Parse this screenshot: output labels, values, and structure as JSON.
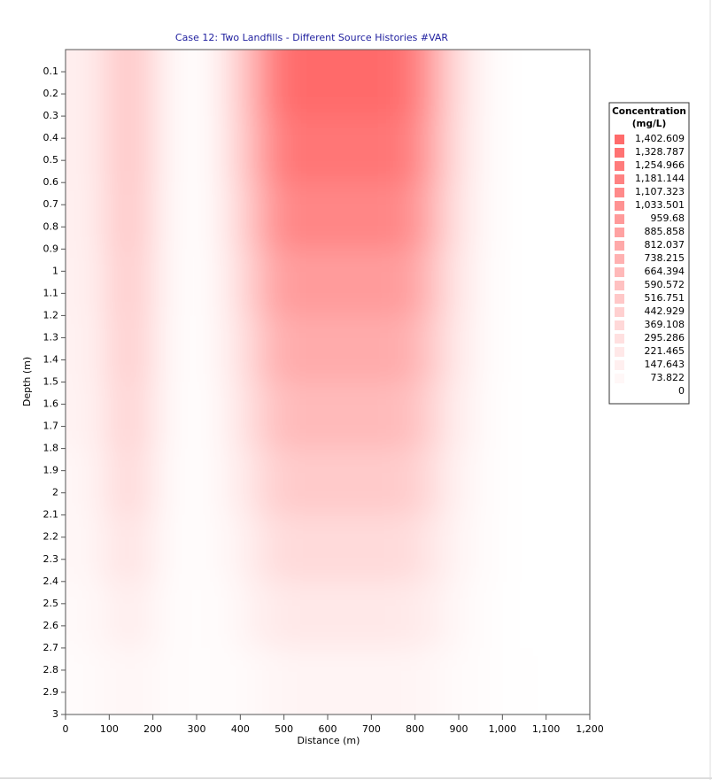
{
  "chart_data": {
    "type": "heatmap",
    "title": "Case 12: Two Landfills - Different Source Histories #VAR",
    "x_label": "Distance (m)",
    "y_label": "Depth (m)",
    "x": [
      25,
      75,
      125,
      175,
      225,
      275,
      325,
      375,
      425,
      475,
      525,
      575,
      625,
      675,
      725,
      775,
      825,
      875,
      925,
      975,
      1025,
      1075,
      1125,
      1175
    ],
    "y": [
      0.15,
      0.45,
      0.75,
      1.05,
      1.35,
      1.65,
      1.95,
      2.25,
      2.55,
      2.85
    ],
    "values": [
      [
        150,
        250,
        500,
        450,
        150,
        30,
        60,
        300,
        700,
        1200,
        1400,
        1400,
        1400,
        1400,
        1400,
        1350,
        1000,
        500,
        200,
        50,
        10,
        0,
        0,
        0
      ],
      [
        150,
        250,
        500,
        450,
        150,
        30,
        60,
        280,
        650,
        1100,
        1300,
        1300,
        1300,
        1300,
        1300,
        1250,
        930,
        470,
        190,
        50,
        10,
        0,
        0,
        0
      ],
      [
        140,
        240,
        480,
        430,
        140,
        30,
        55,
        250,
        580,
        980,
        1150,
        1150,
        1150,
        1150,
        1150,
        1100,
        820,
        420,
        170,
        45,
        10,
        0,
        0,
        0
      ],
      [
        130,
        220,
        450,
        400,
        130,
        25,
        50,
        210,
        480,
        820,
        950,
        950,
        950,
        950,
        950,
        920,
        690,
        350,
        150,
        40,
        10,
        0,
        0,
        0
      ],
      [
        120,
        200,
        420,
        380,
        120,
        25,
        45,
        180,
        400,
        690,
        800,
        800,
        800,
        800,
        800,
        770,
        580,
        300,
        130,
        35,
        10,
        0,
        0,
        0
      ],
      [
        110,
        180,
        380,
        340,
        110,
        25,
        40,
        150,
        330,
        560,
        650,
        650,
        650,
        650,
        650,
        630,
        470,
        240,
        110,
        30,
        10,
        0,
        0,
        0
      ],
      [
        90,
        150,
        320,
        290,
        95,
        25,
        40,
        120,
        260,
        430,
        500,
        500,
        500,
        500,
        500,
        480,
        370,
        190,
        90,
        30,
        10,
        0,
        0,
        0
      ],
      [
        80,
        120,
        250,
        220,
        80,
        25,
        35,
        90,
        180,
        300,
        350,
        350,
        350,
        350,
        350,
        340,
        260,
        140,
        70,
        25,
        10,
        0,
        0,
        0
      ],
      [
        60,
        90,
        150,
        140,
        60,
        25,
        30,
        60,
        120,
        190,
        220,
        220,
        220,
        220,
        220,
        210,
        170,
        100,
        50,
        20,
        10,
        0,
        0,
        0
      ],
      [
        40,
        60,
        80,
        80,
        50,
        30,
        30,
        40,
        60,
        90,
        100,
        100,
        100,
        100,
        100,
        100,
        90,
        60,
        40,
        20,
        10,
        5,
        0,
        0
      ]
    ],
    "xlim": [
      0,
      1200
    ],
    "xticks": [
      0,
      100,
      200,
      300,
      400,
      500,
      600,
      700,
      800,
      900,
      {
        "value": 1000,
        "label": "1,000"
      },
      {
        "value": 1100,
        "label": "1,100"
      },
      {
        "value": 1200,
        "label": "1,200"
      }
    ],
    "ylim": [
      0,
      3
    ],
    "y_inverted": true,
    "yticks": [
      0.1,
      0.2,
      0.3,
      0.4,
      0.5,
      0.6,
      0.7,
      0.8,
      0.9,
      1,
      1.1,
      1.2,
      1.3,
      1.4,
      1.5,
      1.6,
      1.7,
      1.8,
      1.9,
      2,
      2.1,
      2.2,
      2.3,
      2.4,
      2.5,
      2.6,
      2.7,
      2.8,
      2.9,
      3
    ],
    "colormap": [
      "#ffffff",
      "#ff6b6b"
    ],
    "legend": {
      "title": [
        "Concentration",
        "(mg/L)"
      ],
      "position": "right",
      "levels": [
        {
          "value": 1402.609,
          "label": "1,402.609"
        },
        {
          "value": 1328.787,
          "label": "1,328.787"
        },
        {
          "value": 1254.966,
          "label": "1,254.966"
        },
        {
          "value": 1181.144,
          "label": "1,181.144"
        },
        {
          "value": 1107.323,
          "label": "1,107.323"
        },
        {
          "value": 1033.501,
          "label": "1,033.501"
        },
        959.68,
        885.858,
        812.037,
        738.215,
        664.394,
        590.572,
        516.751,
        442.929,
        369.108,
        295.286,
        221.465,
        147.643,
        73.822,
        0
      ]
    }
  }
}
